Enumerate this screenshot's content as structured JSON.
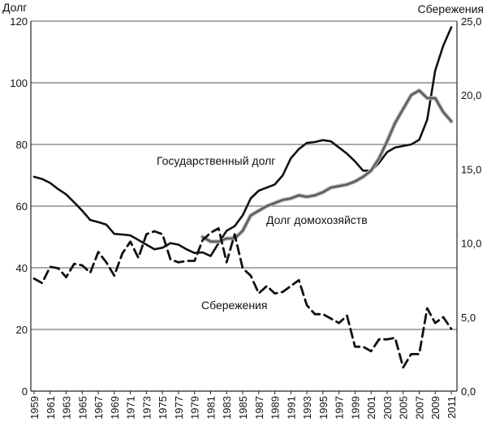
{
  "chart_data": {
    "type": "line",
    "y_left": {
      "label": "Долг",
      "min": 0,
      "max": 120,
      "ticks": [
        "0",
        "20",
        "40",
        "60",
        "80",
        "100",
        "120"
      ]
    },
    "y_right": {
      "label": "Сбережения",
      "min": 0,
      "max": 25,
      "ticks": [
        "0,0",
        "5,0",
        "10,0",
        "15,0",
        "20,0",
        "25,0"
      ]
    },
    "x_ticks": [
      "1959",
      "1961",
      "1963",
      "1965",
      "1967",
      "1969",
      "1971",
      "1973",
      "1975",
      "1977",
      "1979",
      "1981",
      "1983",
      "1985",
      "1987",
      "1989",
      "1991",
      "1993",
      "1995",
      "1997",
      "1999",
      "2001",
      "2003",
      "2005",
      "2007",
      "2009",
      "2011"
    ],
    "grid": "horizontal",
    "annotations": {
      "gov": "Государственный долг",
      "household": "Долг домохозяйств",
      "savings": "Сбережения"
    },
    "series": [
      {
        "name": "Государственный долг",
        "axis": "left",
        "style": "solid-black",
        "x": [
          1959,
          1960,
          1961,
          1962,
          1963,
          1964,
          1965,
          1966,
          1967,
          1968,
          1969,
          1970,
          1971,
          1972,
          1973,
          1974,
          1975,
          1976,
          1977,
          1978,
          1979,
          1980,
          1981,
          1982,
          1983,
          1984,
          1985,
          1986,
          1987,
          1988,
          1989,
          1990,
          1991,
          1992,
          1993,
          1994,
          1995,
          1996,
          1997,
          1998,
          1999,
          2000,
          2001,
          2002,
          2003,
          2004,
          2005,
          2006,
          2007,
          2008,
          2009,
          2010,
          2011
        ],
        "values": [
          69.5,
          68.8,
          67.5,
          65.5,
          63.8,
          61.2,
          58.5,
          55.5,
          54.8,
          54.0,
          51.0,
          50.8,
          50.5,
          49.0,
          47.5,
          46.0,
          46.5,
          48.0,
          47.5,
          46.0,
          44.8,
          45.0,
          43.8,
          48.0,
          52.0,
          53.5,
          57.0,
          62.5,
          65.0,
          66.0,
          67.0,
          70.0,
          75.5,
          78.5,
          80.5,
          80.8,
          81.4,
          81.0,
          79.0,
          77.0,
          74.5,
          71.5,
          71.5,
          74.0,
          77.5,
          79.0,
          79.5,
          80.0,
          81.5,
          88.0,
          104.0,
          112.0,
          118.0
        ]
      },
      {
        "name": "Долг домохозяйств",
        "axis": "left",
        "style": "solid-gray",
        "x": [
          1980,
          1981,
          1982,
          1983,
          1984,
          1985,
          1986,
          1987,
          1988,
          1989,
          1990,
          1991,
          1992,
          1993,
          1994,
          1995,
          1996,
          1997,
          1998,
          1999,
          2000,
          2001,
          2002,
          2003,
          2004,
          2005,
          2006,
          2007,
          2008,
          2009,
          2010,
          2011
        ],
        "values": [
          50.0,
          48.5,
          48.5,
          49.5,
          49.5,
          52.0,
          57.0,
          58.5,
          60.0,
          61.0,
          62.0,
          62.5,
          63.5,
          63.0,
          63.5,
          64.5,
          66.0,
          66.5,
          67.0,
          68.0,
          69.5,
          71.5,
          75.5,
          81.0,
          87.0,
          91.5,
          96.0,
          97.5,
          95.0,
          95.0,
          90.5,
          87.5
        ]
      },
      {
        "name": "Сбережения",
        "axis": "right",
        "style": "dashed-black",
        "x": [
          1959,
          1960,
          1961,
          1962,
          1963,
          1964,
          1965,
          1966,
          1967,
          1968,
          1969,
          1970,
          1971,
          1972,
          1973,
          1974,
          1975,
          1976,
          1977,
          1978,
          1979,
          1980,
          1981,
          1982,
          1983,
          1984,
          1985,
          1986,
          1987,
          1988,
          1989,
          1990,
          1991,
          1992,
          1993,
          1994,
          1995,
          1996,
          1997,
          1998,
          1999,
          2000,
          2001,
          2002,
          2003,
          2004,
          2005,
          2006,
          2007,
          2008,
          2009,
          2010,
          2011
        ],
        "values": [
          7.6,
          7.3,
          8.4,
          8.3,
          7.7,
          8.6,
          8.5,
          8.0,
          9.4,
          8.7,
          7.8,
          9.3,
          10.1,
          9.0,
          10.6,
          10.8,
          10.6,
          8.9,
          8.7,
          8.8,
          8.8,
          10.2,
          10.7,
          11.0,
          8.7,
          10.6,
          8.3,
          7.8,
          6.6,
          7.1,
          6.6,
          6.7,
          7.1,
          7.5,
          5.8,
          5.2,
          5.2,
          4.9,
          4.6,
          5.1,
          3.0,
          3.0,
          2.7,
          3.5,
          3.5,
          3.6,
          1.6,
          2.5,
          2.5,
          5.6,
          4.6,
          5.0,
          4.2
        ]
      }
    ]
  }
}
